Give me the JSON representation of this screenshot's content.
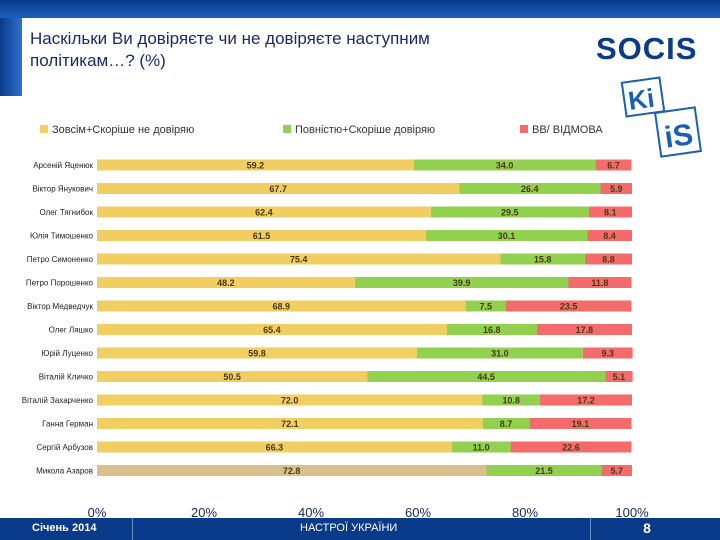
{
  "title": "Наскільки Ви довіряєте чи не довіряєте наступним політикам…? (%)",
  "logos": {
    "socis": "SOCIS",
    "kiis_line1": "Ki",
    "kiis_line2": "iS"
  },
  "footer": {
    "date": "Січень 2014",
    "center": "НАСТРОЇ УКРАЇНИ",
    "page_number": "8"
  },
  "colors": {
    "distrust": "#f0ce62",
    "trust": "#92d050",
    "hard_to_say": "#f36b6b",
    "last_row_distrust": "#d9c08a",
    "header": "#0a3a8a"
  },
  "chart_data": {
    "type": "bar",
    "orientation": "horizontal",
    "stacked": true,
    "percent_stacked": true,
    "categories": [
      "Арсеній Яценюк",
      "Віктор Янукович",
      "Олег Тягнибок",
      "Юлія Тимошенко",
      "Петро Симоненко",
      "Петро Порошенко",
      "Віктор Медведчук",
      "Олег Ляшко",
      "Юрій Луценко",
      "Віталій Кличко",
      "Віталій Захарченко",
      "Ганна Герман",
      "Сергій Арбузов",
      "Микола Азаров"
    ],
    "series": [
      {
        "name": "Зовсім+Скоріше не довіряю",
        "values": [
          59.2,
          67.7,
          62.4,
          61.5,
          75.4,
          48.2,
          68.9,
          65.4,
          59.8,
          50.5,
          72.0,
          72.1,
          66.3,
          72.8
        ]
      },
      {
        "name": "Повністю+Скоріше довіряю",
        "values": [
          34.0,
          26.4,
          29.5,
          30.1,
          15.8,
          39.9,
          7.5,
          16.8,
          31.0,
          44.5,
          10.8,
          8.7,
          11.0,
          21.5
        ]
      },
      {
        "name": "ВВ/ ВІДМОВА",
        "values": [
          6.7,
          5.9,
          8.1,
          8.4,
          8.8,
          11.8,
          23.5,
          17.8,
          9.3,
          5.1,
          17.2,
          19.1,
          22.6,
          5.7
        ]
      }
    ],
    "value_labels": [
      [
        "59.2",
        "67.7",
        "62.4",
        "61.5",
        "75.4",
        "48.2",
        "68.9",
        "65.4",
        "59.8",
        "50.5",
        "72.0",
        "72.1",
        "66.3",
        "72.8"
      ],
      [
        "34.0",
        "26.4",
        "29.5",
        "30.1",
        "15.8",
        "39.9",
        "7.5",
        "16.8",
        "31.0",
        "44.5",
        "10.8",
        "8.7",
        "11.0",
        "21.5"
      ],
      [
        "6.7",
        "5.9",
        "8.1",
        "8.4",
        "8.8",
        "11.8",
        "23.5",
        "17.8",
        "9.3",
        "5.1",
        "17.2",
        "19.1",
        "22.6",
        "5.7"
      ]
    ],
    "xlim": [
      0,
      100
    ],
    "x_ticks": [
      "0%",
      "20%",
      "40%",
      "60%",
      "80%",
      "100%"
    ],
    "legend_position": "top",
    "grid": false
  }
}
